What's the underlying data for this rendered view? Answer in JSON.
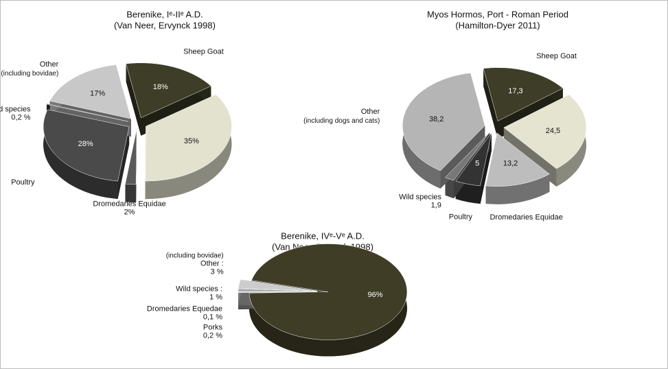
{
  "chart_data": [
    {
      "type": "pie",
      "title": "Berenike, Iᵉ-IIᵉ A.D.",
      "subtitle": "(Van Neer, Ervynck 1998)",
      "categories": [
        "Sheep Goat",
        null,
        "Dromedaries Equidae",
        "Poultry",
        "Wild species",
        "Other"
      ],
      "notes": [
        null,
        null,
        null,
        null,
        null,
        "(including bovidae)"
      ],
      "values": [
        18,
        35,
        2,
        28,
        0.2,
        17
      ],
      "value_labels": [
        "18%",
        "35%",
        "2%",
        "28%",
        "0,2 %",
        "17%"
      ],
      "colors": [
        "#3d3d28",
        "#e2e2cf",
        "#5a5a5a",
        "#4a4a4a",
        "#333333",
        "#c8c8c8"
      ]
    },
    {
      "type": "pie",
      "title": "Myos Hormos, Port - Roman Period",
      "subtitle": "(Hamilton-Dyer 2011)",
      "categories": [
        "Sheep Goat",
        null,
        "Dromedaries Equidae",
        "Poultry",
        "Wild species",
        "Other"
      ],
      "notes": [
        null,
        null,
        null,
        null,
        null,
        "(including dogs and cats)"
      ],
      "values": [
        17.3,
        24.5,
        13.2,
        5,
        1.9,
        38.2
      ],
      "value_labels": [
        "17,3",
        "24,5",
        "13,2",
        "5",
        "1,9",
        "38,2"
      ],
      "colors": [
        "#3d3d28",
        "#e4e4d0",
        "#bdbdbd",
        "#333333",
        "#777777",
        "#b5b5b5"
      ]
    },
    {
      "type": "pie",
      "title": "Berenike, IVᵉ-Vᵉ A.D.",
      "subtitle": "(Van Neer, Ervynck 1998)",
      "categories": [
        null,
        "Porks",
        "Dromedaries Equedae",
        "Wild species :",
        "Other :"
      ],
      "notes": [
        null,
        null,
        null,
        null,
        "(including bovidae)"
      ],
      "values": [
        96,
        0.2,
        0.1,
        1,
        3
      ],
      "value_labels": [
        "96%",
        "0,2 %",
        "0,1 %",
        "1 %",
        "3 %"
      ],
      "colors": [
        "#3f3d26",
        "#666666",
        "#888888",
        "#aaaaaa",
        "#cccccc"
      ]
    }
  ]
}
